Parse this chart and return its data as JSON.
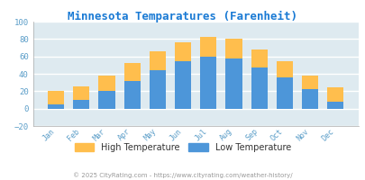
{
  "title": "Minnesota Temparatures (Farenheit)",
  "months": [
    "Jan",
    "Feb",
    "Mar",
    "Apr",
    "May",
    "Jun",
    "Jul",
    "Aug",
    "Sep",
    "Oct",
    "Nov",
    "Dec"
  ],
  "low_temps": [
    5,
    10,
    20,
    32,
    44,
    54,
    60,
    58,
    47,
    36,
    22,
    8
  ],
  "high_temps": [
    20,
    26,
    38,
    52,
    66,
    76,
    82,
    80,
    68,
    55,
    38,
    24
  ],
  "low_color": "#4d96d9",
  "high_color": "#ffbe4d",
  "bg_color": "#deeaf0",
  "title_color": "#1a7ad4",
  "tick_color": "#5a9dc8",
  "grid_color": "#ffffff",
  "ylim": [
    -20,
    100
  ],
  "yticks": [
    -20,
    0,
    20,
    40,
    60,
    80,
    100
  ],
  "legend_high": "High Temperature",
  "legend_low": "Low Temperature",
  "legend_text_color": "#333333",
  "footer": "© 2025 CityRating.com - https://www.cityrating.com/weather-history/",
  "footer_color": "#999999"
}
